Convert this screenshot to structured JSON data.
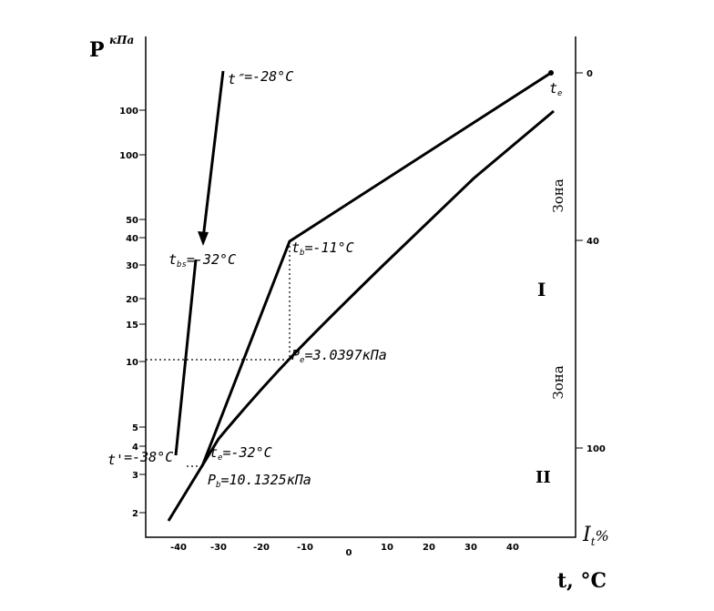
{
  "axis_y": {
    "label": "P",
    "unit": "кПа",
    "ticks": [
      "100",
      "100",
      "50",
      "40",
      "30",
      "20",
      "15",
      "10",
      "5",
      "4",
      "3",
      "2"
    ]
  },
  "axis_y2": {
    "label": "I",
    "label_sub": "t",
    "unit": "%",
    "ticks": [
      "0",
      "40",
      "100"
    ]
  },
  "axis_x": {
    "label": "t, °C",
    "ticks": [
      "-40",
      "-30",
      "-20",
      "-10",
      "0",
      "10",
      "20",
      "30",
      "40"
    ]
  },
  "annotations": [
    {
      "main": "t″",
      "sub": "",
      "rest": "=-28°C"
    },
    {
      "main": "t",
      "sub": "bs",
      "rest": "=-32°C"
    },
    {
      "main": "t",
      "sub": "b",
      "rest": "=-11°C"
    },
    {
      "main": "P",
      "sub": "e",
      "rest": "=3.0397кПа"
    },
    {
      "main": "t'",
      "sub": "",
      "rest": "=-38°C"
    },
    {
      "main": "t",
      "sub": "e",
      "rest": "=-32°C"
    },
    {
      "main": "P",
      "sub": "b",
      "rest": "=10.1325кПа"
    },
    {
      "main": "t",
      "sub": "e",
      "rest": ""
    }
  ],
  "zones": [
    {
      "word": "Зона",
      "numeral": "I"
    },
    {
      "word": "Зона",
      "numeral": "II"
    }
  ]
}
